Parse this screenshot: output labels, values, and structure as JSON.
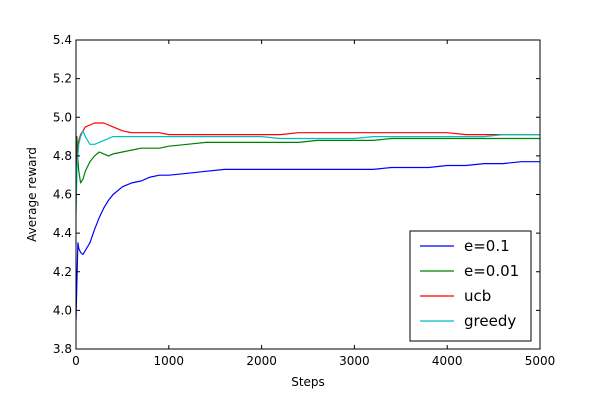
{
  "chart_data": {
    "type": "line",
    "title": "",
    "xlabel": "Steps",
    "ylabel": "Average reward",
    "xlim": [
      0,
      5000
    ],
    "ylim": [
      3.8,
      5.4
    ],
    "xticks": [
      0,
      1000,
      2000,
      3000,
      4000,
      5000
    ],
    "yticks": [
      3.8,
      4.0,
      4.2,
      4.4,
      4.6,
      4.8,
      5.0,
      5.2,
      5.4
    ],
    "xtick_labels": [
      "0",
      "1000",
      "2000",
      "3000",
      "4000",
      "5000"
    ],
    "ytick_labels": [
      "3.8",
      "4.0",
      "4.2",
      "4.4",
      "4.6",
      "4.8",
      "5.0",
      "5.2",
      "5.4"
    ],
    "grid": false,
    "legend_position": "lower-right",
    "series": [
      {
        "name": "e=0.1",
        "color": "#0000ff",
        "x": [
          0,
          10,
          20,
          30,
          50,
          75,
          100,
          150,
          200,
          250,
          300,
          350,
          400,
          500,
          600,
          700,
          800,
          900,
          1000,
          1200,
          1400,
          1600,
          1800,
          2000,
          2200,
          2400,
          2600,
          2800,
          3000,
          3200,
          3400,
          3600,
          3800,
          4000,
          4200,
          4400,
          4600,
          4800,
          5000
        ],
        "y": [
          3.95,
          4.15,
          4.35,
          4.32,
          4.3,
          4.29,
          4.31,
          4.35,
          4.42,
          4.48,
          4.53,
          4.57,
          4.6,
          4.64,
          4.66,
          4.67,
          4.69,
          4.7,
          4.7,
          4.71,
          4.72,
          4.73,
          4.73,
          4.73,
          4.73,
          4.73,
          4.73,
          4.73,
          4.73,
          4.73,
          4.74,
          4.74,
          4.74,
          4.75,
          4.75,
          4.76,
          4.76,
          4.77,
          4.77
        ]
      },
      {
        "name": "e=0.01",
        "color": "#008000",
        "x": [
          0,
          10,
          20,
          30,
          50,
          75,
          100,
          150,
          200,
          250,
          300,
          350,
          400,
          500,
          600,
          700,
          800,
          900,
          1000,
          1200,
          1400,
          1600,
          1800,
          2000,
          2200,
          2400,
          2600,
          2800,
          3000,
          3200,
          3400,
          3600,
          3800,
          4000,
          4200,
          4400,
          4600,
          4800,
          5000
        ],
        "y": [
          4.6,
          4.9,
          4.78,
          4.72,
          4.66,
          4.68,
          4.72,
          4.77,
          4.8,
          4.82,
          4.81,
          4.8,
          4.81,
          4.82,
          4.83,
          4.84,
          4.84,
          4.84,
          4.85,
          4.86,
          4.87,
          4.87,
          4.87,
          4.87,
          4.87,
          4.87,
          4.88,
          4.88,
          4.88,
          4.88,
          4.89,
          4.89,
          4.89,
          4.89,
          4.89,
          4.89,
          4.89,
          4.89,
          4.89
        ]
      },
      {
        "name": "ucb",
        "color": "#ff0000",
        "x": [
          0,
          10,
          20,
          30,
          50,
          75,
          100,
          150,
          200,
          250,
          300,
          350,
          400,
          500,
          600,
          700,
          800,
          900,
          1000,
          1200,
          1400,
          1600,
          1800,
          2000,
          2200,
          2400,
          2600,
          2800,
          3000,
          3200,
          3400,
          3600,
          3800,
          4000,
          4200,
          4400,
          4600,
          4800,
          5000
        ],
        "y": [
          4.55,
          4.75,
          4.85,
          4.88,
          4.91,
          4.93,
          4.95,
          4.96,
          4.97,
          4.97,
          4.97,
          4.96,
          4.95,
          4.93,
          4.92,
          4.92,
          4.92,
          4.92,
          4.91,
          4.91,
          4.91,
          4.91,
          4.91,
          4.91,
          4.91,
          4.92,
          4.92,
          4.92,
          4.92,
          4.92,
          4.92,
          4.92,
          4.92,
          4.92,
          4.91,
          4.91,
          4.91,
          4.91,
          4.91
        ]
      },
      {
        "name": "greedy",
        "color": "#00bfbf",
        "x": [
          0,
          10,
          20,
          30,
          50,
          75,
          100,
          150,
          200,
          250,
          300,
          350,
          400,
          500,
          600,
          700,
          800,
          900,
          1000,
          1200,
          1400,
          1600,
          1800,
          2000,
          2200,
          2400,
          2600,
          2800,
          3000,
          3200,
          3400,
          3600,
          3800,
          4000,
          4200,
          4400,
          4600,
          4800,
          5000
        ],
        "y": [
          4.5,
          4.72,
          4.8,
          4.86,
          4.9,
          4.93,
          4.9,
          4.86,
          4.86,
          4.87,
          4.88,
          4.89,
          4.9,
          4.9,
          4.9,
          4.9,
          4.9,
          4.9,
          4.9,
          4.9,
          4.9,
          4.9,
          4.9,
          4.9,
          4.89,
          4.89,
          4.89,
          4.89,
          4.89,
          4.9,
          4.9,
          4.9,
          4.9,
          4.9,
          4.9,
          4.9,
          4.91,
          4.91,
          4.91
        ]
      }
    ]
  }
}
